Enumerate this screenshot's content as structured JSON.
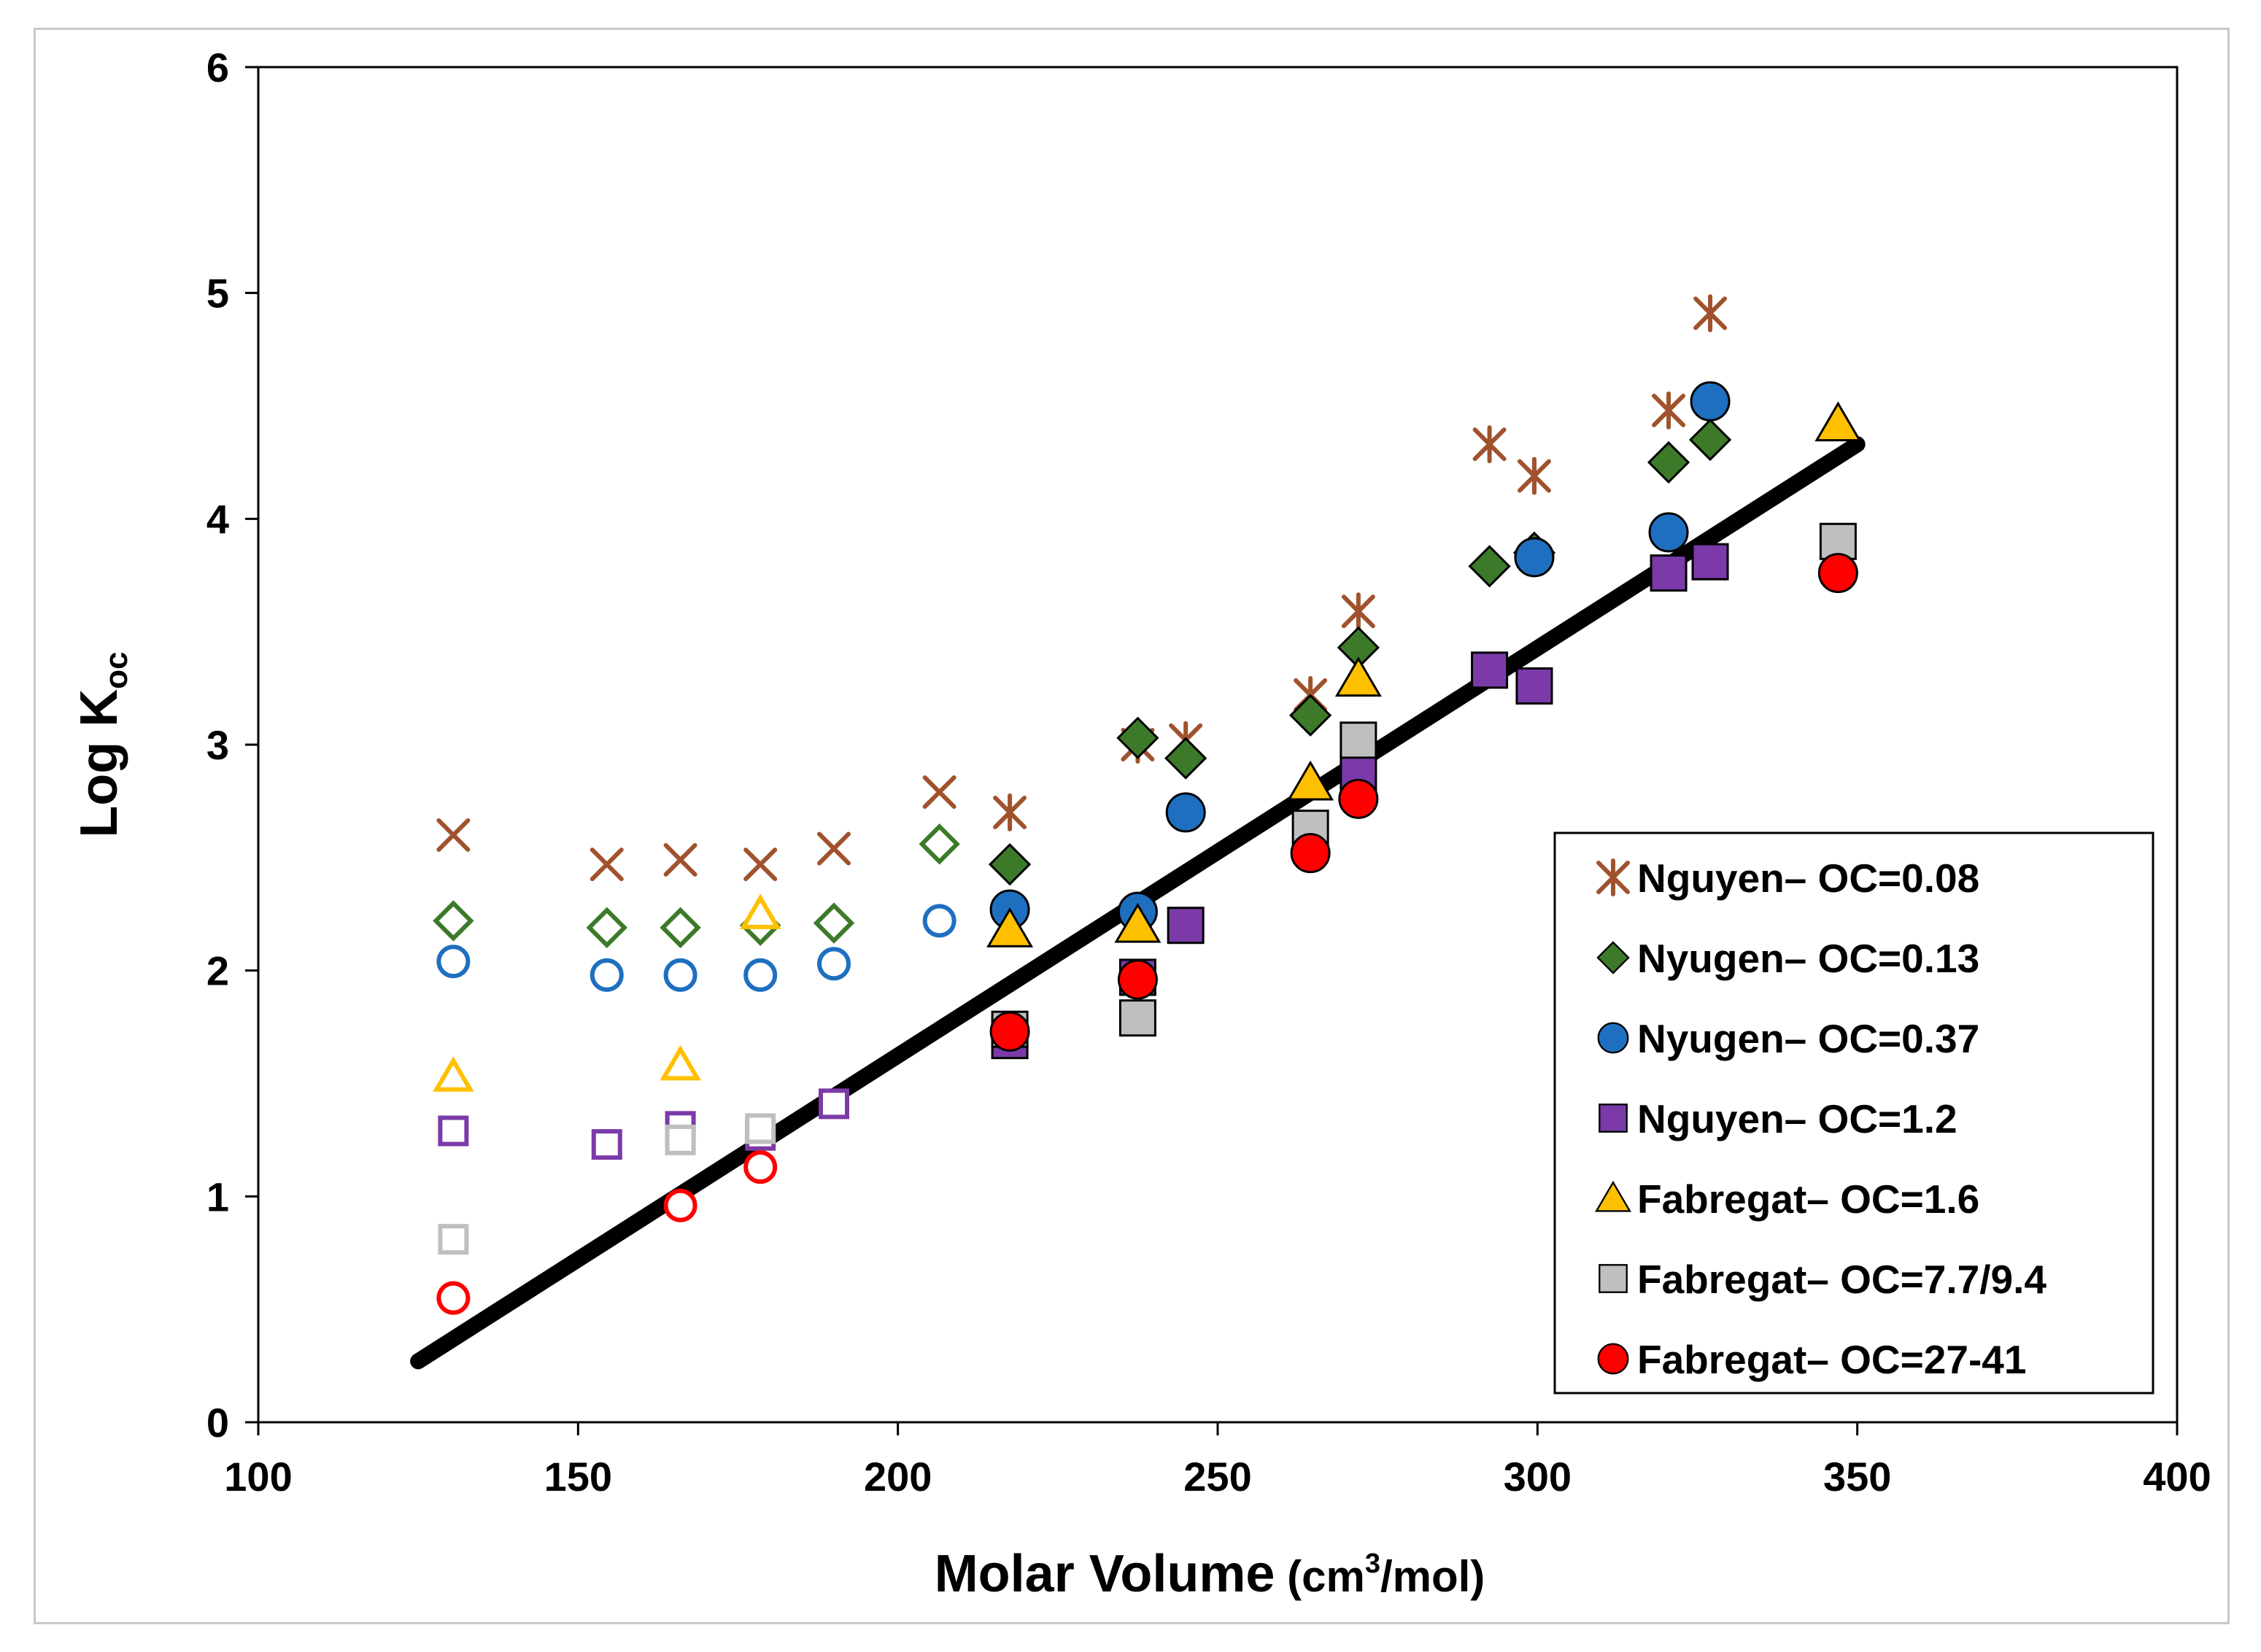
{
  "chart_data": {
    "type": "scatter",
    "title": "",
    "xlabel": "Molar Volume",
    "xlabel_units": "(cm3/mol)",
    "ylabel": "Log Koc",
    "xlim": [
      100,
      400
    ],
    "ylim": [
      0,
      6
    ],
    "xticks": [
      "100",
      "150",
      "200",
      "250",
      "300",
      "350",
      "400"
    ],
    "yticks": [
      "0",
      "1",
      "2",
      "3",
      "4",
      "5",
      "6"
    ],
    "legend_position": "bottom-right",
    "grid": false,
    "fit_line": {
      "label": "Regression line",
      "x": [
        125,
        350
      ],
      "y": [
        0.27,
        4.33
      ]
    },
    "series": [
      {
        "name": "Nguyen– OC=0.08",
        "marker": "asterisk",
        "color": "#a0522d",
        "points": [
          [
            217.5,
            2.7
          ],
          [
            237.5,
            3.0
          ],
          [
            245,
            3.02
          ],
          [
            264.5,
            3.22
          ],
          [
            272,
            3.59
          ],
          [
            292.5,
            4.33
          ],
          [
            299.5,
            4.19
          ],
          [
            320.5,
            4.48
          ],
          [
            327,
            4.91
          ]
        ],
        "open_points": [
          [
            130.5,
            2.6
          ],
          [
            154.5,
            2.47
          ],
          [
            166,
            2.49
          ],
          [
            178.5,
            2.47
          ],
          [
            190,
            2.54
          ],
          [
            206.5,
            2.79
          ]
        ]
      },
      {
        "name": "Nyugen– OC=0.13",
        "marker": "diamond",
        "color": "#3c7a2a",
        "points": [
          [
            217.5,
            2.47
          ],
          [
            237.5,
            3.03
          ],
          [
            245,
            2.94
          ],
          [
            264.5,
            3.13
          ],
          [
            272,
            3.43
          ],
          [
            292.5,
            3.79
          ],
          [
            299.5,
            3.85
          ],
          [
            320.5,
            4.25
          ],
          [
            327,
            4.35
          ]
        ],
        "open_points": [
          [
            130.5,
            2.22
          ],
          [
            154.5,
            2.19
          ],
          [
            166,
            2.19
          ],
          [
            178.5,
            2.2
          ],
          [
            190,
            2.21
          ],
          [
            206.5,
            2.56
          ]
        ]
      },
      {
        "name": "Nyugen– OC=0.37",
        "marker": "circle",
        "color": "#1f6fc0",
        "points": [
          [
            217.5,
            2.27
          ],
          [
            237.5,
            2.26
          ],
          [
            245,
            2.7
          ],
          [
            299.5,
            3.83
          ],
          [
            320.5,
            3.94
          ],
          [
            327,
            4.52
          ]
        ],
        "open_points": [
          [
            130.5,
            2.04
          ],
          [
            154.5,
            1.98
          ],
          [
            166,
            1.98
          ],
          [
            178.5,
            1.98
          ],
          [
            190,
            2.03
          ],
          [
            206.5,
            2.22
          ]
        ]
      },
      {
        "name": "Nguyen– OC=1.2",
        "marker": "square",
        "color": "#7b3aa8",
        "points": [
          [
            217.5,
            1.69
          ],
          [
            237.5,
            1.97
          ],
          [
            245,
            2.2
          ],
          [
            272,
            2.87
          ],
          [
            292.5,
            3.33
          ],
          [
            299.5,
            3.26
          ],
          [
            320.5,
            3.76
          ],
          [
            327,
            3.81
          ]
        ],
        "open_points": [
          [
            130.5,
            1.29
          ],
          [
            154.5,
            1.23
          ],
          [
            166,
            1.31
          ],
          [
            178.5,
            1.27
          ],
          [
            190,
            1.41
          ]
        ]
      },
      {
        "name": "Fabregat– OC=1.6",
        "marker": "triangle",
        "color": "#ffc000",
        "points": [
          [
            217.5,
            2.18
          ],
          [
            237.5,
            2.2
          ],
          [
            264.5,
            2.83
          ],
          [
            272,
            3.29
          ],
          [
            347,
            4.42
          ]
        ],
        "open_points": [
          [
            130.5,
            1.53
          ],
          [
            166,
            1.58
          ],
          [
            178.5,
            2.25
          ]
        ]
      },
      {
        "name": "Fabregat– OC=7.7/9.4",
        "marker": "square",
        "color": "#bfbfbf",
        "points": [
          [
            217.5,
            1.74
          ],
          [
            237.5,
            1.79
          ],
          [
            264.5,
            2.63
          ],
          [
            272,
            3.02
          ],
          [
            347,
            3.9
          ]
        ],
        "open_points": [
          [
            130.5,
            0.81
          ],
          [
            166,
            1.25
          ],
          [
            178.5,
            1.3
          ]
        ]
      },
      {
        "name": "Fabregat– OC=27-41",
        "marker": "circle",
        "color": "#ff0000",
        "points": [
          [
            217.5,
            1.73
          ],
          [
            237.5,
            1.96
          ],
          [
            264.5,
            2.52
          ],
          [
            272,
            2.76
          ],
          [
            347,
            3.76
          ]
        ],
        "open_points": [
          [
            130.5,
            0.55
          ],
          [
            166,
            0.96
          ],
          [
            178.5,
            1.13
          ]
        ]
      }
    ]
  }
}
